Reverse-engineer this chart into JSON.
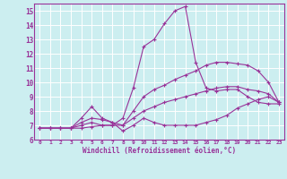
{
  "xlabel": "Windchill (Refroidissement éolien,°C)",
  "xlim": [
    -0.5,
    23.5
  ],
  "ylim": [
    6,
    15.5
  ],
  "xticks": [
    0,
    1,
    2,
    3,
    4,
    5,
    6,
    7,
    8,
    9,
    10,
    11,
    12,
    13,
    14,
    15,
    16,
    17,
    18,
    19,
    20,
    21,
    22,
    23
  ],
  "yticks": [
    6,
    7,
    8,
    9,
    10,
    11,
    12,
    13,
    14,
    15
  ],
  "bg_color": "#cceef0",
  "line_color": "#993399",
  "grid_color": "#ffffff",
  "lines": [
    {
      "x": [
        0,
        1,
        2,
        3,
        4,
        5,
        6,
        7,
        8,
        9,
        10,
        11,
        12,
        13,
        14,
        15,
        16,
        17,
        18,
        19,
        20,
        21,
        22,
        23
      ],
      "y": [
        6.8,
        6.8,
        6.8,
        6.8,
        6.8,
        6.9,
        7.0,
        7.0,
        7.5,
        9.6,
        12.5,
        13.0,
        14.1,
        15.0,
        15.3,
        11.4,
        9.6,
        9.4,
        9.5,
        9.5,
        9.0,
        8.6,
        8.5,
        8.5
      ]
    },
    {
      "x": [
        0,
        1,
        2,
        3,
        4,
        5,
        6,
        7,
        8,
        9,
        10,
        11,
        12,
        13,
        14,
        15,
        16,
        17,
        18,
        19,
        20,
        21,
        22,
        23
      ],
      "y": [
        6.8,
        6.8,
        6.8,
        6.8,
        7.5,
        8.3,
        7.5,
        7.2,
        6.6,
        7.0,
        7.5,
        7.2,
        7.0,
        7.0,
        7.0,
        7.0,
        7.2,
        7.4,
        7.7,
        8.2,
        8.5,
        8.8,
        9.0,
        8.6
      ]
    },
    {
      "x": [
        0,
        1,
        2,
        3,
        4,
        5,
        6,
        7,
        8,
        9,
        10,
        11,
        12,
        13,
        14,
        15,
        16,
        17,
        18,
        19,
        20,
        21,
        22,
        23
      ],
      "y": [
        6.8,
        6.8,
        6.8,
        6.8,
        7.2,
        7.5,
        7.4,
        7.2,
        7.0,
        8.0,
        9.0,
        9.5,
        9.8,
        10.2,
        10.5,
        10.8,
        11.2,
        11.4,
        11.4,
        11.3,
        11.2,
        10.8,
        10.0,
        8.6
      ]
    },
    {
      "x": [
        0,
        1,
        2,
        3,
        4,
        5,
        6,
        7,
        8,
        9,
        10,
        11,
        12,
        13,
        14,
        15,
        16,
        17,
        18,
        19,
        20,
        21,
        22,
        23
      ],
      "y": [
        6.8,
        6.8,
        6.8,
        6.8,
        7.0,
        7.2,
        7.0,
        7.0,
        7.0,
        7.5,
        8.0,
        8.3,
        8.6,
        8.8,
        9.0,
        9.2,
        9.4,
        9.6,
        9.7,
        9.7,
        9.5,
        9.4,
        9.2,
        8.6
      ]
    }
  ]
}
